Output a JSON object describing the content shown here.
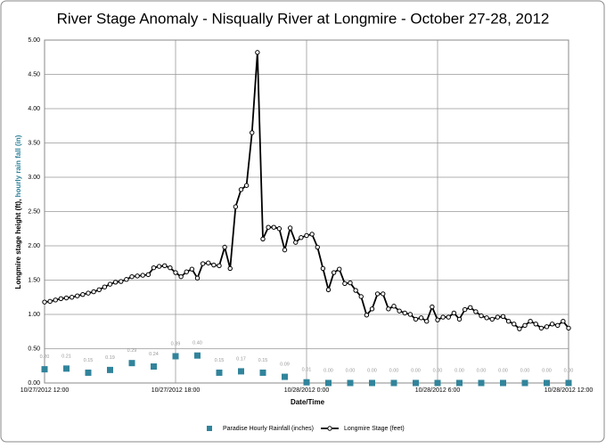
{
  "chart_data": {
    "type": "line",
    "title": "River Stage Anomaly - Nisqually River at Longmire - October 27-28, 2012",
    "xlabel": "Date/Time",
    "ylabel": [
      "Longmire stage height (ft), ",
      "hourly rain fall (in)"
    ],
    "ylabel_colors": [
      "#000000",
      "#31849b"
    ],
    "xlim": [
      0,
      24
    ],
    "xticks": [
      {
        "value": 0,
        "label": "10/27/2012 12:00"
      },
      {
        "value": 6,
        "label": "10/27/2012 18:00"
      },
      {
        "value": 12,
        "label": "10/28/2012 0:00"
      },
      {
        "value": 18,
        "label": "10/28/2012 6:00"
      },
      {
        "value": 24,
        "label": "10/28/2012 12:00"
      }
    ],
    "ylim": [
      0,
      5
    ],
    "yticks": [
      {
        "value": 0,
        "label": "0.00"
      },
      {
        "value": 0.5,
        "label": "0.50"
      },
      {
        "value": 1,
        "label": "1.00"
      },
      {
        "value": 1.5,
        "label": "1.50"
      },
      {
        "value": 2,
        "label": "2.00"
      },
      {
        "value": 2.5,
        "label": "2.50"
      },
      {
        "value": 3,
        "label": "3.00"
      },
      {
        "value": 3.5,
        "label": "3.50"
      },
      {
        "value": 4,
        "label": "4.00"
      },
      {
        "value": 4.5,
        "label": "4.50"
      },
      {
        "value": 5,
        "label": "5.00"
      }
    ],
    "grid": true,
    "series": [
      {
        "name": "Paradise Hourly Rainfall (inches)",
        "color": "#31849b",
        "marker": "square",
        "x": [
          0,
          1,
          2,
          3,
          4,
          5,
          6,
          7,
          8,
          9,
          10,
          11,
          12,
          13,
          14,
          15,
          16,
          17,
          18,
          19,
          20,
          21,
          22,
          23,
          24
        ],
        "values": [
          0.2,
          0.21,
          0.15,
          0.19,
          0.29,
          0.24,
          0.39,
          0.4,
          0.15,
          0.17,
          0.15,
          0.09,
          0.01,
          0,
          0,
          0,
          0,
          0,
          0,
          0,
          0,
          0,
          0,
          0,
          0
        ],
        "value_labels": [
          "0.20",
          "0.21",
          "0.15",
          "0.19",
          "0.29",
          "0.24",
          "0.39",
          "0.40",
          "0.15",
          "0.17",
          "0.15",
          "0.09",
          "0.01",
          "0.00",
          "0.00",
          "0.00",
          "0.00",
          "0.00",
          "0.00",
          "0.00",
          "0.00",
          "0.00",
          "0.00",
          "0.00",
          "0.00"
        ]
      },
      {
        "name": "Longmire Stage (feet)",
        "color": "#000000",
        "marker": "circle-line",
        "x": [
          0,
          0.25,
          0.5,
          0.75,
          1,
          1.25,
          1.5,
          1.75,
          2,
          2.25,
          2.5,
          2.75,
          3,
          3.25,
          3.5,
          3.75,
          4,
          4.25,
          4.5,
          4.75,
          5,
          5.25,
          5.5,
          5.75,
          6,
          6.25,
          6.5,
          6.75,
          7,
          7.25,
          7.5,
          7.75,
          8,
          8.25,
          8.5,
          8.75,
          9,
          9.25,
          9.5,
          9.75,
          10,
          10.25,
          10.5,
          10.75,
          11,
          11.25,
          11.5,
          11.75,
          12,
          12.25,
          12.5,
          12.75,
          13,
          13.25,
          13.5,
          13.75,
          14,
          14.25,
          14.5,
          14.75,
          15,
          15.25,
          15.5,
          15.75,
          16,
          16.25,
          16.5,
          16.75,
          17,
          17.25,
          17.5,
          17.75,
          18,
          18.25,
          18.5,
          18.75,
          19,
          19.25,
          19.5,
          19.75,
          20,
          20.25,
          20.5,
          20.75,
          21,
          21.25,
          21.5,
          21.75,
          22,
          22.25,
          22.5,
          22.75,
          23,
          23.25,
          23.5,
          23.75,
          24
        ],
        "values": [
          1.18,
          1.19,
          1.21,
          1.23,
          1.24,
          1.25,
          1.27,
          1.29,
          1.31,
          1.33,
          1.36,
          1.4,
          1.44,
          1.47,
          1.48,
          1.51,
          1.55,
          1.56,
          1.57,
          1.58,
          1.68,
          1.7,
          1.71,
          1.68,
          1.61,
          1.55,
          1.62,
          1.66,
          1.53,
          1.74,
          1.75,
          1.72,
          1.71,
          1.98,
          1.67,
          2.57,
          2.82,
          2.88,
          3.65,
          4.82,
          2.1,
          2.27,
          2.27,
          2.25,
          1.94,
          2.26,
          2.05,
          2.12,
          2.15,
          2.17,
          1.98,
          1.67,
          1.36,
          1.61,
          1.66,
          1.45,
          1.46,
          1.35,
          1.26,
          0.99,
          1.08,
          1.3,
          1.3,
          1.08,
          1.12,
          1.05,
          1.02,
          1,
          0.93,
          0.95,
          0.9,
          1.11,
          0.92,
          0.96,
          0.96,
          1.02,
          0.93,
          1.07,
          1.1,
          1.04,
          0.98,
          0.95,
          0.93,
          0.96,
          0.97,
          0.9,
          0.86,
          0.79,
          0.84,
          0.9,
          0.86,
          0.8,
          0.82,
          0.86,
          0.84,
          0.9,
          0.8
        ]
      }
    ]
  }
}
